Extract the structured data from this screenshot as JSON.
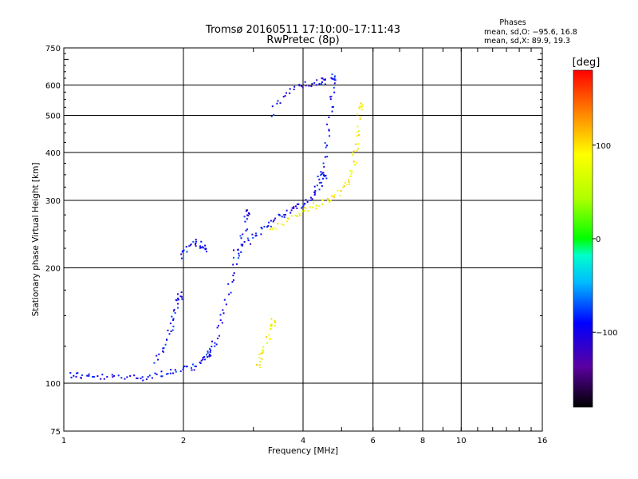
{
  "chart_data": {
    "type": "scatter",
    "title": "Tromsø 20160511 17:10:00–17:11:43",
    "subtitle": "RwPretec (8p)",
    "xlabel": "Frequency [MHz]",
    "ylabel": "Stationary phase Virtual Height [km]",
    "x_scale": "log",
    "y_scale": "log",
    "xlim": [
      1,
      16
    ],
    "ylim": [
      75,
      750
    ],
    "x_ticks": [
      1,
      2,
      4,
      6,
      8,
      10,
      16
    ],
    "x_tick_labels": [
      "1",
      "2",
      "4",
      "6",
      "8",
      "10",
      "16"
    ],
    "y_ticks": [
      75,
      100,
      200,
      300,
      400,
      500,
      600,
      750
    ],
    "y_tick_labels": [
      "75",
      "100",
      "200",
      "300",
      "400",
      "500",
      "600",
      "750"
    ],
    "grid": true,
    "phase_box": {
      "title": "Phases",
      "line_o": "mean, sd,O: −95.6, 16.8",
      "line_x": "mean, sd,X:  89.9, 19.3"
    },
    "colorbar": {
      "label": "[deg]",
      "ticks": [
        -100,
        0,
        100
      ],
      "tick_labels": [
        "−100",
        "0",
        "100"
      ],
      "range": [
        -180,
        180
      ]
    },
    "series": [
      {
        "mode": "O",
        "phase_deg": -95,
        "traces": [
          {
            "x": [
              1.03,
              1.1,
              1.2,
              1.35,
              1.5,
              1.65,
              1.8,
              1.95,
              2.1,
              2.2,
              2.3
            ],
            "y": [
              106,
              105,
              104,
              104,
              104,
              105,
              107,
              108,
              110,
              114,
              120
            ]
          },
          {
            "x": [
              2.3,
              2.4,
              2.5,
              2.6,
              2.7,
              2.8,
              2.9
            ],
            "y": [
              120,
              130,
              150,
              180,
              210,
              240,
              280
            ]
          },
          {
            "x": [
              2.7,
              2.9,
              3.1,
              3.3,
              3.5,
              3.7,
              3.9,
              4.1,
              4.3,
              4.5
            ],
            "y": [
              220,
              235,
              250,
              265,
              275,
              285,
              290,
              300,
              320,
              350
            ]
          },
          {
            "x": [
              4.3,
              4.5,
              4.6,
              4.7,
              4.75
            ],
            "y": [
              330,
              380,
              450,
              550,
              630
            ]
          },
          {
            "x": [
              3.3,
              3.6,
              3.9,
              4.2,
              4.5
            ],
            "y": [
              500,
              570,
              600,
              610,
              615
            ]
          },
          {
            "x": [
              1.7,
              1.8,
              1.85,
              1.9,
              1.95
            ],
            "y": [
              115,
              125,
              140,
              155,
              170
            ]
          },
          {
            "x": [
              1.95,
              2.05,
              2.15,
              2.25
            ],
            "y": [
              215,
              230,
              235,
              225
            ]
          }
        ]
      },
      {
        "mode": "X",
        "phase_deg": 90,
        "traces": [
          {
            "x": [
              3.3,
              3.6,
              3.9,
              4.2,
              4.5,
              4.8,
              5.1,
              5.3,
              5.4,
              5.5,
              5.55
            ],
            "y": [
              255,
              265,
              280,
              290,
              300,
              310,
              330,
              360,
              400,
              450,
              530
            ]
          },
          {
            "x": [
              3.05,
              3.15,
              3.25,
              3.35
            ],
            "y": [
              110,
              120,
              130,
              145
            ]
          }
        ]
      }
    ]
  }
}
